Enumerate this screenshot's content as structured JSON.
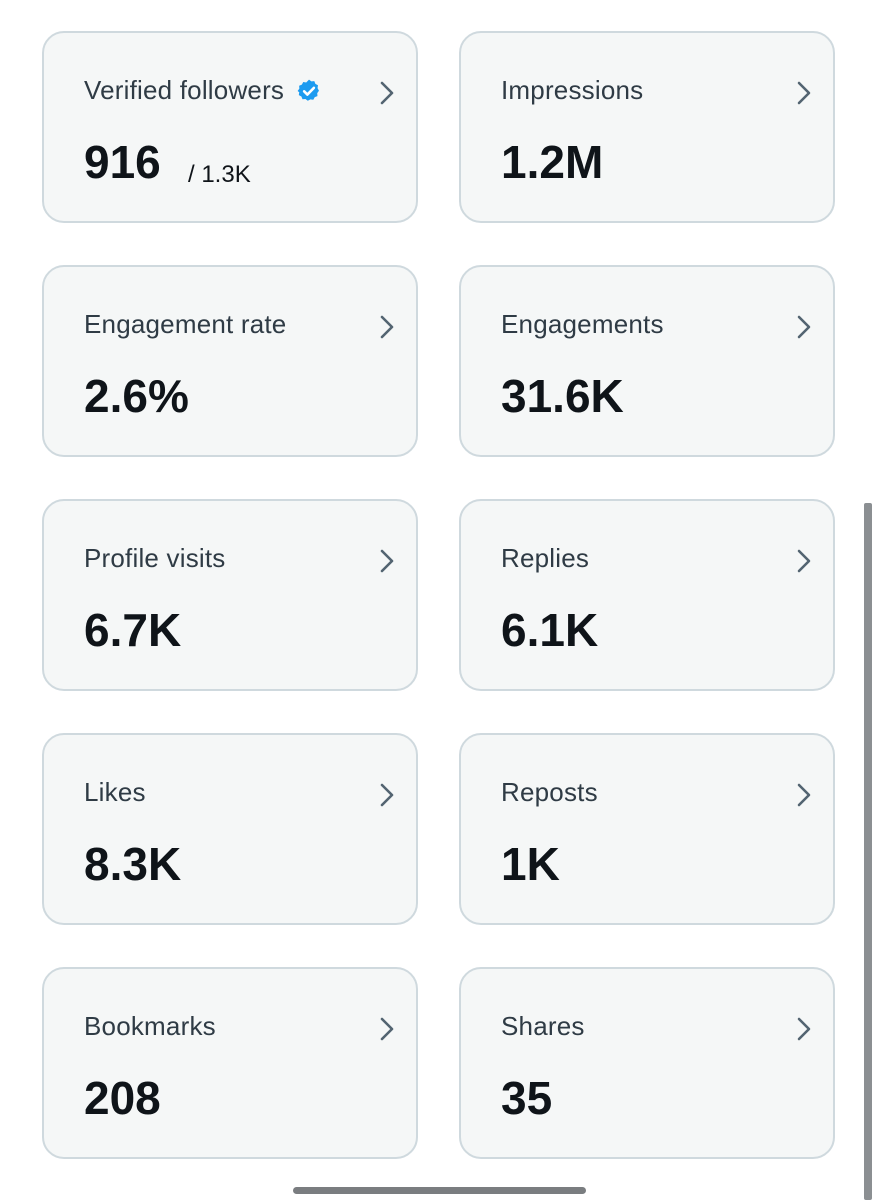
{
  "metrics": [
    {
      "label": "Verified followers",
      "value": "916",
      "sub_value": "/ 1.3K",
      "verified": true
    },
    {
      "label": "Impressions",
      "value": "1.2M"
    },
    {
      "label": "Engagement rate",
      "value": "2.6%"
    },
    {
      "label": "Engagements",
      "value": "31.6K"
    },
    {
      "label": "Profile visits",
      "value": "6.7K"
    },
    {
      "label": "Replies",
      "value": "6.1K"
    },
    {
      "label": "Likes",
      "value": "8.3K"
    },
    {
      "label": "Reposts",
      "value": "1K"
    },
    {
      "label": "Bookmarks",
      "value": "208"
    },
    {
      "label": "Shares",
      "value": "35"
    }
  ],
  "icons": {
    "chevron": "chevron-right-icon",
    "verified": "verified-badge-icon"
  },
  "colors": {
    "card_background": "#f5f7f7",
    "card_border": "#cfd9de",
    "label_text": "#2f3b45",
    "value_text": "#0f1419",
    "verified_badge": "#1d9bf0",
    "chevron": "#536471"
  }
}
